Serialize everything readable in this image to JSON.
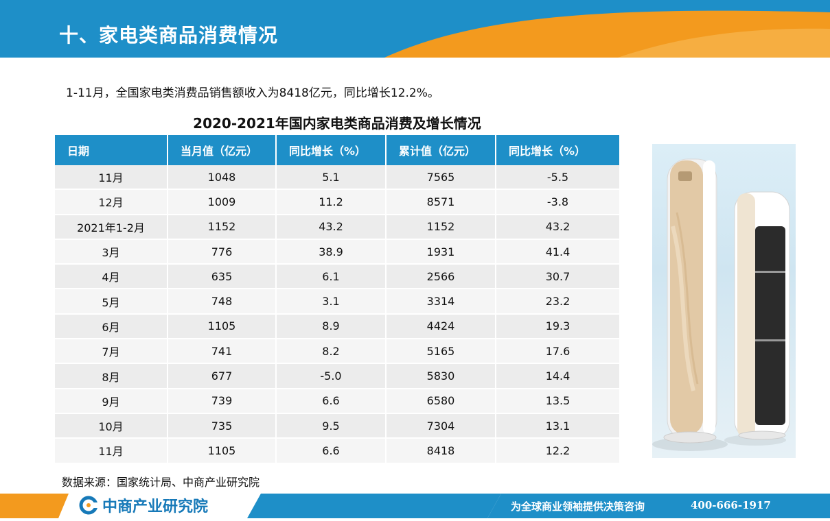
{
  "header": {
    "title": "十、家电类商品消费情况"
  },
  "intro": "1-11月，全国家电类消费品销售额收入为8418亿元，同比增长12.2%。",
  "table": {
    "title": "2020-2021年国内家电类商品消费及增长情况",
    "headers": [
      "日期",
      "当月值（亿元）",
      "同比增长（%）",
      "累计值（亿元）",
      "同比增长（%）"
    ],
    "rows": [
      [
        "11月",
        "1048",
        "5.1",
        "7565",
        "-5.5"
      ],
      [
        "12月",
        "1009",
        "11.2",
        "8571",
        "-3.8"
      ],
      [
        "2021年1-2月",
        "1152",
        "43.2",
        "1152",
        "43.2"
      ],
      [
        "3月",
        "776",
        "38.9",
        "1931",
        "41.4"
      ],
      [
        "4月",
        "635",
        "6.1",
        "2566",
        "30.7"
      ],
      [
        "5月",
        "748",
        "3.1",
        "3314",
        "23.2"
      ],
      [
        "6月",
        "1105",
        "8.9",
        "4424",
        "19.3"
      ],
      [
        "7月",
        "741",
        "8.2",
        "5165",
        "17.6"
      ],
      [
        "8月",
        "677",
        "-5.0",
        "5830",
        "14.4"
      ],
      [
        "9月",
        "739",
        "6.6",
        "6580",
        "13.5"
      ],
      [
        "10月",
        "735",
        "9.5",
        "7304",
        "13.1"
      ],
      [
        "11月",
        "1105",
        "6.6",
        "8418",
        "12.2"
      ]
    ]
  },
  "source": "数据来源：国家统计局、中商产业研究院",
  "footer": {
    "logo_text": "中商产业研究院",
    "slogan": "为全球商业领袖提供决策咨询",
    "phone": "400-666-1917"
  },
  "colors": {
    "header_blue": "#1e8fc8",
    "accent_orange": "#f39a1e",
    "table_header": "#1e8fc8"
  }
}
